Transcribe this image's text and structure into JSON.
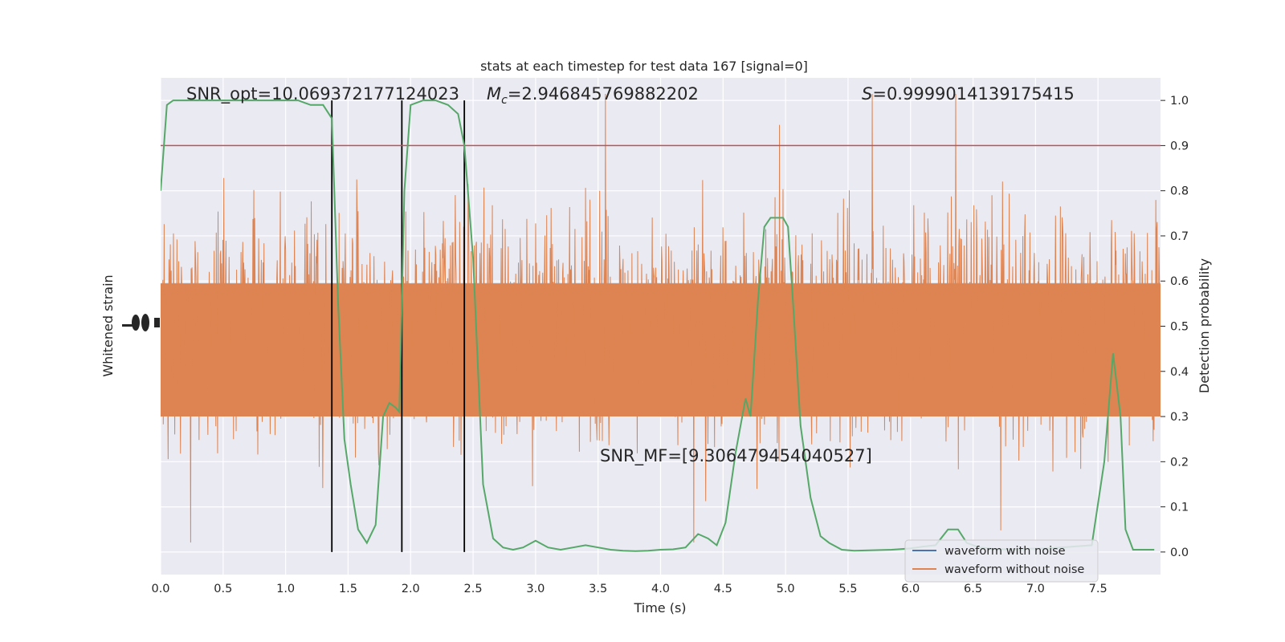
{
  "chart_data": {
    "type": "line",
    "title": "stats at each timestep for test data 167 [signal=0]",
    "xlabel": "Time (s)",
    "ylabel_left": "Whitened strain",
    "ylabel_right": "Detection probability",
    "xlim": [
      0,
      8.0
    ],
    "ylim_right": [
      -0.05,
      1.05
    ],
    "x_ticks": [
      "0.0",
      "0.5",
      "1.0",
      "1.5",
      "2.0",
      "2.5",
      "3.0",
      "3.5",
      "4.0",
      "4.5",
      "5.0",
      "5.5",
      "6.0",
      "6.5",
      "7.0",
      "7.5"
    ],
    "y_ticks_right": [
      "0.0",
      "0.1",
      "0.2",
      "0.3",
      "0.4",
      "0.5",
      "0.6",
      "0.7",
      "0.8",
      "0.9",
      "1.0"
    ],
    "grid": true,
    "annotations": {
      "snr_opt": "SNR_opt=10.069372177124023",
      "mc": "=2.946845769882202",
      "mc_symbol": "M",
      "mc_sub": "c",
      "s": "=0.9999014139175415",
      "s_symbol": "S",
      "snr_mf": "SNR_MF=[9.306479454040527]"
    },
    "threshold": {
      "value": 0.9,
      "color": "#c44e52"
    },
    "vertical_lines_x": [
      1.37,
      1.93,
      2.43
    ],
    "legend": {
      "placement": "lower-right",
      "entries": [
        {
          "name": "waveform with noise",
          "color": "#4c72b0"
        },
        {
          "name": "waveform without noise",
          "color": "#dd8452"
        }
      ]
    },
    "series": [
      {
        "name": "detection probability",
        "color": "#55a868",
        "x": [
          0.0,
          0.05,
          0.1,
          0.2,
          0.3,
          0.5,
          0.7,
          0.9,
          1.1,
          1.2,
          1.3,
          1.37,
          1.42,
          1.47,
          1.52,
          1.58,
          1.65,
          1.72,
          1.78,
          1.83,
          1.88,
          1.91,
          1.95,
          2.0,
          2.1,
          2.2,
          2.3,
          2.38,
          2.43,
          2.5,
          2.58,
          2.66,
          2.74,
          2.82,
          2.9,
          3.0,
          3.1,
          3.2,
          3.3,
          3.4,
          3.5,
          3.6,
          3.7,
          3.8,
          3.9,
          4.0,
          4.1,
          4.2,
          4.3,
          4.38,
          4.45,
          4.52,
          4.6,
          4.68,
          4.72,
          4.78,
          4.83,
          4.88,
          4.93,
          4.98,
          5.02,
          5.06,
          5.12,
          5.2,
          5.28,
          5.35,
          5.45,
          5.55,
          5.7,
          5.85,
          6.0,
          6.1,
          6.2,
          6.3,
          6.38,
          6.45,
          6.55,
          6.7,
          6.9,
          7.1,
          7.3,
          7.45,
          7.55,
          7.62,
          7.68,
          7.72,
          7.78,
          7.85,
          7.95
        ],
        "values": [
          0.8,
          0.99,
          1.0,
          1.0,
          1.0,
          1.0,
          1.0,
          1.0,
          1.0,
          0.99,
          0.99,
          0.96,
          0.55,
          0.25,
          0.15,
          0.05,
          0.02,
          0.06,
          0.3,
          0.33,
          0.32,
          0.31,
          0.8,
          0.99,
          1.0,
          1.0,
          0.99,
          0.97,
          0.9,
          0.65,
          0.15,
          0.03,
          0.01,
          0.005,
          0.01,
          0.025,
          0.01,
          0.005,
          0.01,
          0.015,
          0.01,
          0.005,
          0.003,
          0.002,
          0.003,
          0.005,
          0.006,
          0.01,
          0.04,
          0.03,
          0.015,
          0.065,
          0.22,
          0.34,
          0.3,
          0.56,
          0.72,
          0.74,
          0.74,
          0.74,
          0.72,
          0.55,
          0.28,
          0.12,
          0.035,
          0.02,
          0.005,
          0.003,
          0.004,
          0.005,
          0.008,
          0.012,
          0.015,
          0.05,
          0.05,
          0.02,
          0.01,
          0.006,
          0.007,
          0.008,
          0.012,
          0.015,
          0.2,
          0.44,
          0.3,
          0.05,
          0.005,
          0.005,
          0.005
        ]
      }
    ]
  }
}
